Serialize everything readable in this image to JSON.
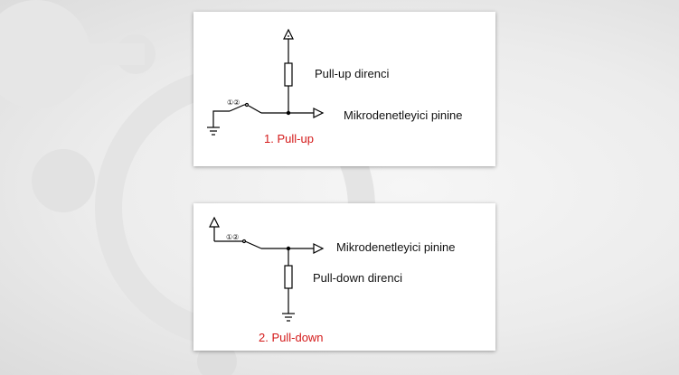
{
  "colors": {
    "caption": "#d41a1a",
    "wire": "#000000"
  },
  "diagrams": [
    {
      "resistor_label": "Pull-up direnci",
      "output_label": "Mikrodenetleyici pinine",
      "caption": "1.  Pull-up",
      "switch_marks": "①②"
    },
    {
      "resistor_label": "Pull-down direnci",
      "output_label": "Mikrodenetleyici pinine",
      "caption": "2. Pull-down",
      "switch_marks": "①②"
    }
  ]
}
